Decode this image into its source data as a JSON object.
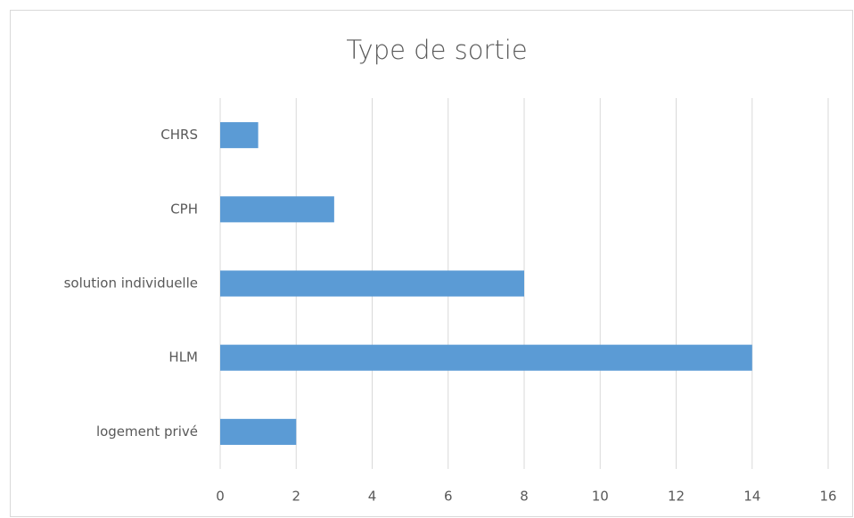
{
  "chart_data": {
    "type": "bar",
    "horizontal": true,
    "title": "Type de sortie",
    "categories": [
      "CHRS",
      "CPH",
      "solution individuelle",
      "HLM",
      "logement privé"
    ],
    "values": [
      1,
      3,
      8,
      14,
      2
    ],
    "color": "#5b9bd5",
    "xlim": [
      0,
      16
    ],
    "xticks": [
      0,
      2,
      4,
      6,
      8,
      10,
      12,
      14,
      16
    ],
    "grid": true
  }
}
